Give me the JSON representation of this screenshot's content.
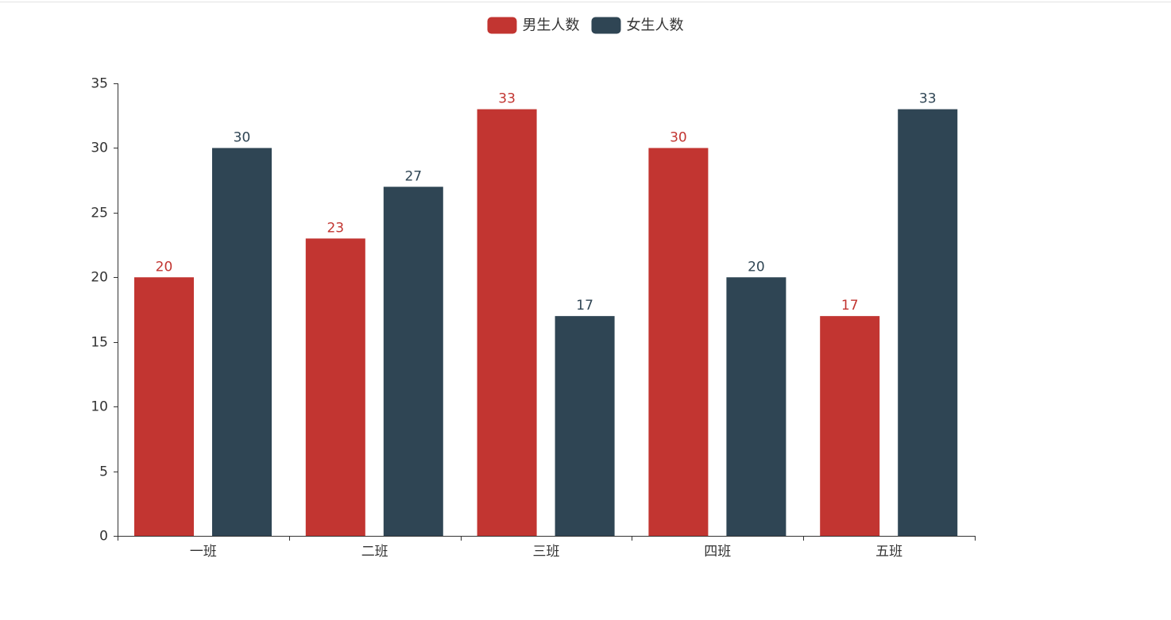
{
  "chart_data": {
    "type": "bar",
    "categories": [
      "一班",
      "二班",
      "三班",
      "四班",
      "五班"
    ],
    "series": [
      {
        "name": "男生人数",
        "color": "#c23531",
        "values": [
          20,
          23,
          33,
          30,
          17
        ]
      },
      {
        "name": "女生人数",
        "color": "#2f4554",
        "values": [
          30,
          27,
          17,
          20,
          33
        ]
      }
    ],
    "title": "",
    "xlabel": "",
    "ylabel": "",
    "ylim": [
      0,
      35
    ],
    "yticks": [
      0,
      5,
      10,
      15,
      20,
      25,
      30,
      35
    ],
    "grid": false,
    "legend_position": "top-center",
    "data_labels": "top",
    "axis_color": "#333333"
  }
}
